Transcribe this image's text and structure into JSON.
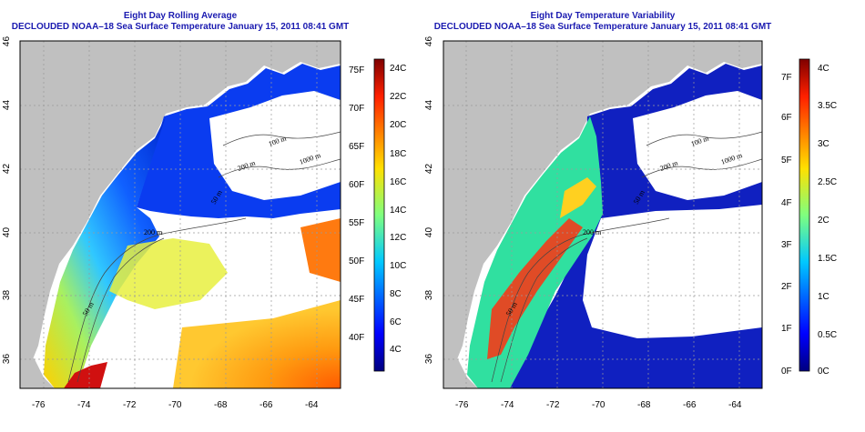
{
  "panels": [
    {
      "title_line1": "Eight Day Rolling Average",
      "title_line2": "DECLOUDED NOAA–18 Sea Surface Temperature January 15, 2011 08:41 GMT",
      "colorbar_f": [
        "75F",
        "70F",
        "65F",
        "60F",
        "55F",
        "50F",
        "45F",
        "40F"
      ],
      "colorbar_c": [
        "24C",
        "22C",
        "20C",
        "18C",
        "16C",
        "14C",
        "12C",
        "10C",
        "8C",
        "6C",
        "4C"
      ],
      "contours": [
        "100 m",
        "1000 m",
        "200 m",
        "50 m",
        "200 m",
        "50 m"
      ]
    },
    {
      "title_line1": "Eight Day Temperature Variability",
      "title_line2": "DECLOUDED NOAA–18 Sea Surface Temperature January 15, 2011 08:41 GMT",
      "colorbar_f": [
        "7F",
        "6F",
        "5F",
        "4F",
        "3F",
        "2F",
        "1F",
        "0F"
      ],
      "colorbar_c": [
        "4C",
        "3.5C",
        "3C",
        "2.5C",
        "2C",
        "1.5C",
        "1C",
        "0.5C",
        "0C"
      ],
      "contours": [
        "100 m",
        "1000 m",
        "200 m",
        "50 m",
        "200 m",
        "50 m"
      ]
    }
  ],
  "lon_ticks": [
    "-76",
    "-74",
    "-72",
    "-70",
    "-68",
    "-66",
    "-64"
  ],
  "lat_ticks": [
    "46",
    "44",
    "42",
    "40",
    "38",
    "36"
  ],
  "colors": {
    "land": "#c0c0c0",
    "title": "#1a1ab0",
    "grid": "#9a9a9a"
  }
}
